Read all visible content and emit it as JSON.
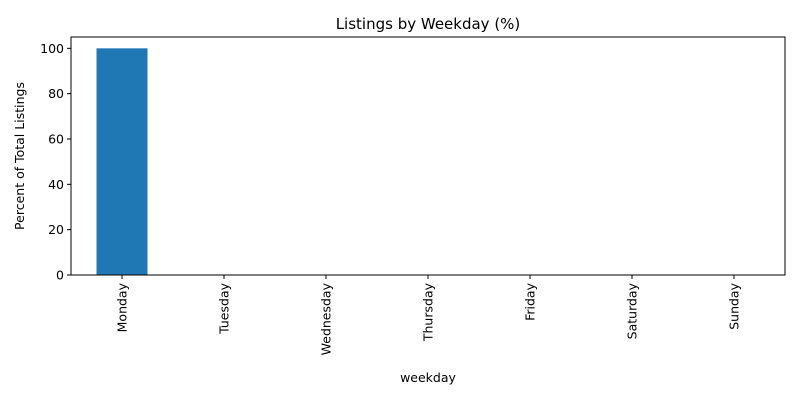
{
  "chart_data": {
    "type": "bar",
    "title": "Listings by Weekday (%)",
    "xlabel": "weekday",
    "ylabel": "Percent of Total Listings",
    "categories": [
      "Monday",
      "Tuesday",
      "Wednesday",
      "Thursday",
      "Friday",
      "Saturday",
      "Sunday"
    ],
    "values": [
      100,
      0,
      0,
      0,
      0,
      0,
      0
    ],
    "ylim": [
      0,
      105
    ],
    "yticks": [
      0,
      20,
      40,
      60,
      80,
      100
    ],
    "bar_color": "#1f77b4",
    "grid": false,
    "legend": "none"
  }
}
